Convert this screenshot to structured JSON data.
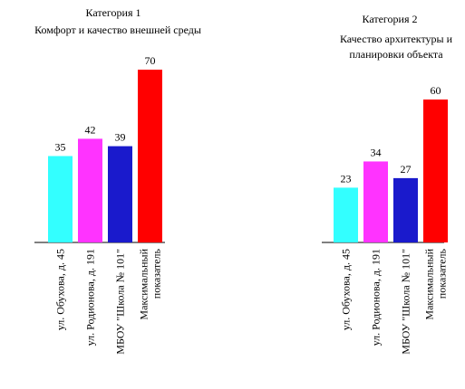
{
  "chart_data": [
    {
      "type": "bar",
      "title": "Категория 1",
      "subtitle": "Комфорт и качество внешней среды",
      "categories": [
        "ул. Обухова, д. 45",
        "ул. Родионова, д. 191",
        "МБОУ \"Школа № 101\"",
        "Максимальный показатель"
      ],
      "category_lines": [
        [
          "ул. Обухова, д. 45"
        ],
        [
          "ул. Родионова, д. 191"
        ],
        [
          "МБОУ \"Школа № 101\""
        ],
        [
          "Максимальный",
          "показатель"
        ]
      ],
      "values": [
        35,
        42,
        39,
        70
      ],
      "colors": [
        "#33ffff",
        "#ff33ff",
        "#1a1acc",
        "#ff0000"
      ],
      "ylim": [
        0,
        70
      ],
      "grid": false,
      "legend": "none"
    },
    {
      "type": "bar",
      "title": "Категория 2",
      "subtitle": "Качество архитектуры и планировки объекта",
      "subtitle_lines": [
        "Качество архитектуры и",
        "планировки объекта"
      ],
      "categories": [
        "ул. Обухова, д. 45",
        "ул. Родионова, д. 191",
        "МБОУ \"Школа № 101\"",
        "Максимальный показатель"
      ],
      "category_lines": [
        [
          "ул. Обухова, д. 45"
        ],
        [
          "ул. Родионова, д. 191"
        ],
        [
          "МБОУ \"Школа № 101\""
        ],
        [
          "Максимальный",
          "показатель"
        ]
      ],
      "values": [
        23,
        34,
        27,
        60
      ],
      "colors": [
        "#33ffff",
        "#ff33ff",
        "#1a1acc",
        "#ff0000"
      ],
      "ylim": [
        0,
        60
      ],
      "grid": false,
      "legend": "none"
    }
  ]
}
